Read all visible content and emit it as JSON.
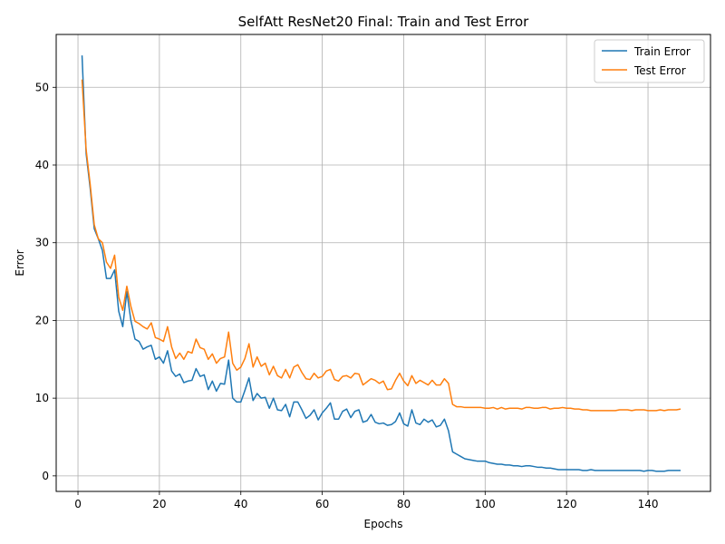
{
  "chart_data": {
    "type": "line",
    "title": "SelfAtt ResNet20 Final: Train and Test Error",
    "xlabel": "Epochs",
    "ylabel": "Error",
    "xlim": [
      -5.35,
      155.35
    ],
    "ylim": [
      -2.0,
      56.8
    ],
    "xticks": [
      0,
      20,
      40,
      60,
      80,
      100,
      120,
      140
    ],
    "yticks": [
      0,
      10,
      20,
      30,
      40,
      50
    ],
    "grid": true,
    "legend": "top-right",
    "x": [
      1,
      2,
      3,
      4,
      5,
      6,
      7,
      8,
      9,
      10,
      11,
      12,
      13,
      14,
      15,
      16,
      17,
      18,
      19,
      20,
      21,
      22,
      23,
      24,
      25,
      26,
      27,
      28,
      29,
      30,
      31,
      32,
      33,
      34,
      35,
      36,
      37,
      38,
      39,
      40,
      41,
      42,
      43,
      44,
      45,
      46,
      47,
      48,
      49,
      50,
      51,
      52,
      53,
      54,
      55,
      56,
      57,
      58,
      59,
      60,
      61,
      62,
      63,
      64,
      65,
      66,
      67,
      68,
      69,
      70,
      71,
      72,
      73,
      74,
      75,
      76,
      77,
      78,
      79,
      80,
      81,
      82,
      83,
      84,
      85,
      86,
      87,
      88,
      89,
      90,
      91,
      92,
      93,
      94,
      95,
      96,
      97,
      98,
      99,
      100,
      101,
      102,
      103,
      104,
      105,
      106,
      107,
      108,
      109,
      110,
      111,
      112,
      113,
      114,
      115,
      116,
      117,
      118,
      119,
      120,
      121,
      122,
      123,
      124,
      125,
      126,
      127,
      128,
      129,
      130,
      131,
      132,
      133,
      134,
      135,
      136,
      137,
      138,
      139,
      140,
      141,
      142,
      143,
      144,
      145,
      146,
      147,
      148
    ],
    "series": [
      {
        "name": "Train Error",
        "color": "#1f77b4",
        "values": [
          54.1,
          41.5,
          37.0,
          31.8,
          30.5,
          29.0,
          25.4,
          25.4,
          26.5,
          21.2,
          19.2,
          23.7,
          20.0,
          17.6,
          17.3,
          16.3,
          16.6,
          16.8,
          15.0,
          15.3,
          14.5,
          16.1,
          13.5,
          12.8,
          13.1,
          12.0,
          12.2,
          12.3,
          13.8,
          12.8,
          13.0,
          11.1,
          12.2,
          10.9,
          11.9,
          11.8,
          14.9,
          10.0,
          9.5,
          9.5,
          11.0,
          12.6,
          9.7,
          10.6,
          10.0,
          10.1,
          8.7,
          10.0,
          8.5,
          8.4,
          9.2,
          7.6,
          9.5,
          9.5,
          8.5,
          7.4,
          7.8,
          8.5,
          7.2,
          8.1,
          8.7,
          9.4,
          7.3,
          7.3,
          8.3,
          8.6,
          7.5,
          8.3,
          8.5,
          6.9,
          7.1,
          7.9,
          6.9,
          6.7,
          6.8,
          6.5,
          6.6,
          7.0,
          8.1,
          6.7,
          6.4,
          8.5,
          6.8,
          6.6,
          7.3,
          6.9,
          7.2,
          6.3,
          6.5,
          7.3,
          5.8,
          3.1,
          2.8,
          2.5,
          2.2,
          2.1,
          2.0,
          1.9,
          1.9,
          1.9,
          1.7,
          1.6,
          1.5,
          1.5,
          1.4,
          1.4,
          1.3,
          1.3,
          1.2,
          1.3,
          1.3,
          1.2,
          1.1,
          1.1,
          1.0,
          1.0,
          0.9,
          0.8,
          0.8,
          0.8,
          0.8,
          0.8,
          0.8,
          0.7,
          0.7,
          0.8,
          0.7,
          0.7,
          0.7,
          0.7,
          0.7,
          0.7,
          0.7,
          0.7,
          0.7,
          0.7,
          0.7,
          0.7,
          0.6,
          0.7,
          0.7,
          0.6,
          0.6,
          0.6,
          0.7,
          0.7,
          0.7,
          0.7
        ]
      },
      {
        "name": "Test Error",
        "color": "#ff7f0e",
        "values": [
          51.0,
          42.0,
          37.5,
          32.3,
          30.5,
          30.0,
          27.5,
          26.7,
          28.4,
          23.0,
          21.3,
          24.4,
          21.8,
          19.9,
          19.6,
          19.2,
          18.9,
          19.7,
          17.8,
          17.6,
          17.3,
          19.2,
          16.6,
          15.1,
          15.8,
          15.0,
          16.0,
          15.8,
          17.6,
          16.5,
          16.3,
          15.0,
          15.7,
          14.5,
          15.1,
          15.3,
          18.5,
          14.5,
          13.6,
          14.0,
          15.1,
          17.0,
          14.0,
          15.3,
          14.1,
          14.5,
          13.0,
          14.1,
          12.9,
          12.6,
          13.7,
          12.6,
          14.0,
          14.3,
          13.3,
          12.5,
          12.4,
          13.2,
          12.6,
          12.8,
          13.5,
          13.7,
          12.4,
          12.2,
          12.8,
          12.9,
          12.6,
          13.2,
          13.1,
          11.7,
          12.1,
          12.5,
          12.3,
          11.9,
          12.2,
          11.1,
          11.2,
          12.3,
          13.2,
          12.2,
          11.6,
          12.9,
          11.9,
          12.3,
          12.0,
          11.7,
          12.3,
          11.7,
          11.7,
          12.5,
          11.9,
          9.2,
          8.9,
          8.9,
          8.8,
          8.8,
          8.8,
          8.8,
          8.8,
          8.7,
          8.7,
          8.8,
          8.6,
          8.8,
          8.6,
          8.7,
          8.7,
          8.7,
          8.6,
          8.8,
          8.8,
          8.7,
          8.7,
          8.8,
          8.8,
          8.6,
          8.7,
          8.7,
          8.8,
          8.7,
          8.7,
          8.6,
          8.6,
          8.5,
          8.5,
          8.4,
          8.4,
          8.4,
          8.4,
          8.4,
          8.4,
          8.4,
          8.5,
          8.5,
          8.5,
          8.4,
          8.5,
          8.5,
          8.5,
          8.4,
          8.4,
          8.4,
          8.5,
          8.4,
          8.5,
          8.5,
          8.5,
          8.6
        ]
      }
    ]
  }
}
